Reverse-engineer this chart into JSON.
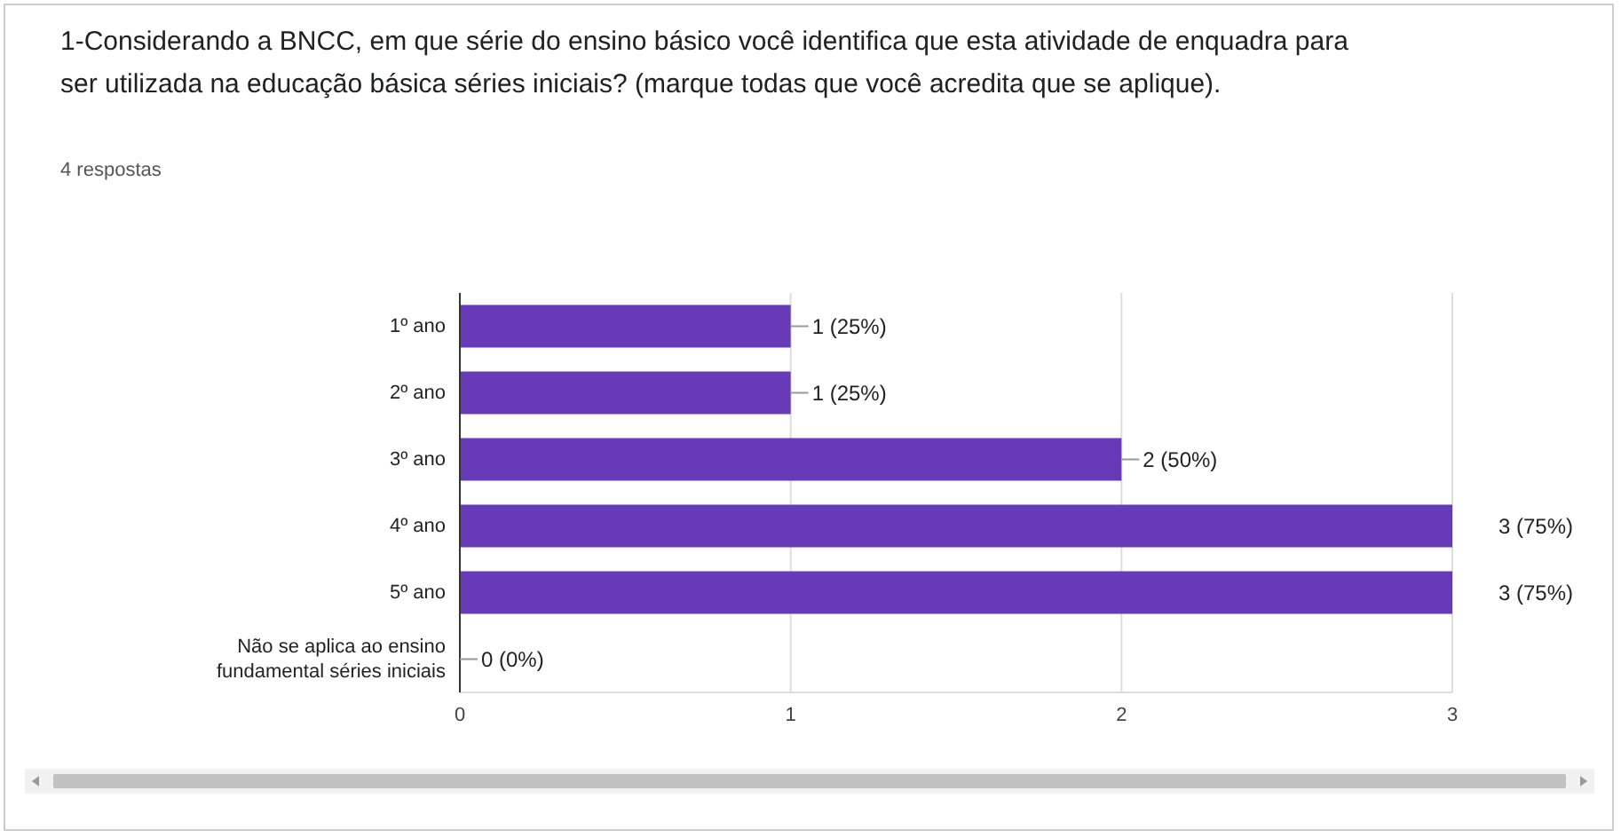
{
  "chart_data": {
    "type": "bar",
    "orientation": "horizontal",
    "title": "1-Considerando a BNCC, em que série do ensino básico você identifica que esta atividade de enquadra para ser utilizada na educação básica séries iniciais? (marque todas que você acredita que se aplique).",
    "subtitle": "4 respostas",
    "categories": [
      "1º ano",
      "2º ano",
      "3º ano",
      "4º ano",
      "5º ano",
      "Não se aplica ao ensino fundamental séries iniciais"
    ],
    "values": [
      1,
      1,
      2,
      3,
      3,
      0
    ],
    "value_labels": [
      "1 (25%)",
      "1 (25%)",
      "2 (50%)",
      "3 (75%)",
      "3 (75%)",
      "0 (0%)"
    ],
    "color": "#673ab7",
    "xlim": [
      0,
      3
    ],
    "xticks": [
      0,
      1,
      2,
      3
    ],
    "grid": "x"
  }
}
